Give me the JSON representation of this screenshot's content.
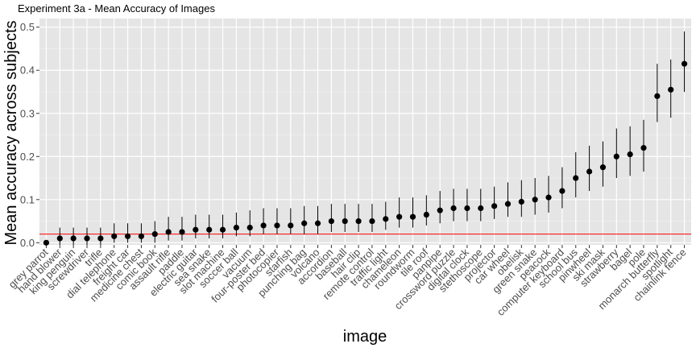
{
  "chart_data": {
    "type": "scatter",
    "title": "Experiment 3a - Mean Accuracy of Images",
    "xlabel": "image",
    "ylabel": "Mean accuracy across subjects",
    "ylim": [
      -0.005,
      0.52
    ],
    "y_ticks": [
      "0.0",
      "0.1",
      "0.2",
      "0.3",
      "0.4",
      "0.5"
    ],
    "y_tick_values": [
      0.0,
      0.1,
      0.2,
      0.3,
      0.4,
      0.5
    ],
    "reference_line": 0.02,
    "reference_color": "#ff0000",
    "panel_color": "#e5e5e5",
    "point_color": "#000000",
    "grid": true,
    "categories": [
      "grey parrot",
      "hand blower",
      "king penguin",
      "screwdriver",
      "trifle",
      "dial telephone",
      "freight car",
      "medicine chest",
      "comic book",
      "assault rifle",
      "paddle",
      "electric guitar",
      "sea snake",
      "slot machine",
      "soccer ball",
      "vacuum",
      "four-poster bed",
      "photocopier",
      "starfish",
      "punching bag",
      "volcano",
      "accordion",
      "baseball",
      "hair clip",
      "remote control",
      "traffic light",
      "chameleon",
      "roundworm",
      "tile roof",
      "panpipe",
      "crossword puzzle",
      "digital clock",
      "stethoscope",
      "projector",
      "car wheel",
      "obelisk",
      "green snake",
      "peacock",
      "computer keyboard",
      "school bus",
      "pinwheel",
      "ski mask",
      "strawberry",
      "bagel",
      "pole",
      "monarch butterfly",
      "spotlight",
      "chainlink fence"
    ],
    "values": [
      0.0,
      0.01,
      0.01,
      0.01,
      0.01,
      0.015,
      0.015,
      0.015,
      0.02,
      0.025,
      0.025,
      0.03,
      0.03,
      0.03,
      0.035,
      0.035,
      0.04,
      0.04,
      0.04,
      0.045,
      0.045,
      0.05,
      0.05,
      0.05,
      0.05,
      0.055,
      0.06,
      0.06,
      0.065,
      0.075,
      0.08,
      0.08,
      0.08,
      0.085,
      0.09,
      0.095,
      0.1,
      0.105,
      0.12,
      0.15,
      0.165,
      0.175,
      0.2,
      0.205,
      0.22,
      0.34,
      0.355,
      0.415
    ],
    "lower": [
      -0.005,
      -0.005,
      -0.005,
      -0.005,
      -0.005,
      0.0,
      0.0,
      0.0,
      0.0,
      0.005,
      0.005,
      0.01,
      0.01,
      0.01,
      0.015,
      0.015,
      0.02,
      0.02,
      0.02,
      0.02,
      0.02,
      0.025,
      0.025,
      0.025,
      0.025,
      0.03,
      0.035,
      0.035,
      0.04,
      0.045,
      0.05,
      0.05,
      0.05,
      0.055,
      0.06,
      0.06,
      0.065,
      0.07,
      0.08,
      0.105,
      0.12,
      0.13,
      0.15,
      0.155,
      0.165,
      0.28,
      0.29,
      0.35
    ],
    "upper": [
      0.005,
      0.035,
      0.035,
      0.035,
      0.035,
      0.045,
      0.045,
      0.045,
      0.05,
      0.06,
      0.06,
      0.065,
      0.065,
      0.065,
      0.07,
      0.075,
      0.08,
      0.08,
      0.08,
      0.085,
      0.085,
      0.09,
      0.09,
      0.09,
      0.09,
      0.095,
      0.105,
      0.105,
      0.11,
      0.12,
      0.125,
      0.125,
      0.125,
      0.13,
      0.14,
      0.145,
      0.15,
      0.155,
      0.175,
      0.21,
      0.225,
      0.235,
      0.265,
      0.27,
      0.285,
      0.415,
      0.425,
      0.49
    ]
  }
}
